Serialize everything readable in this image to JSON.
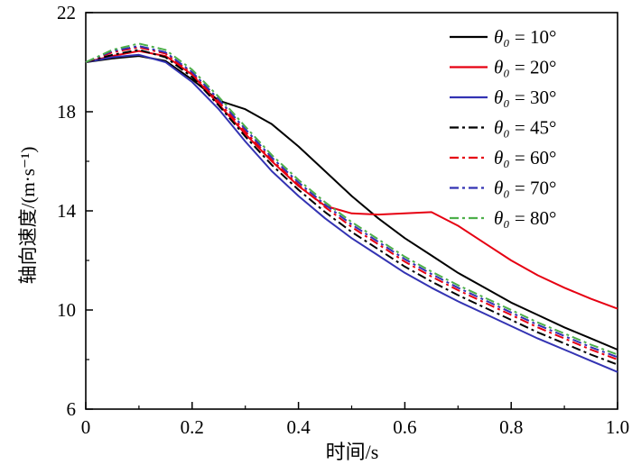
{
  "figure": {
    "background": "#ffffff",
    "frame_color": "#000000"
  },
  "chart_data": {
    "type": "line",
    "title": "",
    "xlabel": "时间/s",
    "ylabel": "轴向速度/(m·s⁻¹)",
    "xlim": [
      0,
      1.0
    ],
    "ylim": [
      6,
      22
    ],
    "grid": false,
    "legend_position": "top-right-inside",
    "x_ticks": {
      "values": [
        0,
        0.2,
        0.4,
        0.6,
        0.8,
        1.0
      ],
      "labels": [
        "0",
        "0.2",
        "0.4",
        "0.6",
        "0.8",
        "1.0"
      ],
      "minor_step": 0.1
    },
    "y_ticks": {
      "values": [
        6,
        10,
        14,
        18,
        22
      ],
      "labels": [
        "6",
        "10",
        "14",
        "18",
        "22"
      ],
      "minor_step": 2
    },
    "x": [
      0,
      0.05,
      0.1,
      0.15,
      0.2,
      0.25,
      0.3,
      0.35,
      0.4,
      0.45,
      0.5,
      0.55,
      0.6,
      0.65,
      0.7,
      0.75,
      0.8,
      0.85,
      0.9,
      0.95,
      1.0
    ],
    "series": [
      {
        "name": "theta0-10",
        "label_symbol": "θ₀",
        "label_rest": " = 10°",
        "color": "#000000",
        "style": "solid",
        "values": [
          20.0,
          20.15,
          20.25,
          20.05,
          19.3,
          18.45,
          18.1,
          17.5,
          16.6,
          15.6,
          14.6,
          13.7,
          12.9,
          12.2,
          11.5,
          10.9,
          10.3,
          9.8,
          9.3,
          8.85,
          8.4
        ]
      },
      {
        "name": "theta0-20",
        "label_symbol": "θ₀",
        "label_rest": " = 20°",
        "color": "#e60012",
        "style": "solid",
        "values": [
          20.0,
          20.25,
          20.45,
          20.25,
          19.5,
          18.3,
          17.1,
          16.0,
          15.0,
          14.2,
          13.9,
          13.85,
          13.9,
          13.95,
          13.4,
          12.7,
          12.0,
          11.4,
          10.9,
          10.45,
          10.05
        ]
      },
      {
        "name": "theta0-30",
        "label_symbol": "θ₀",
        "label_rest": " = 30°",
        "color": "#3333b3",
        "style": "solid",
        "values": [
          20.0,
          20.2,
          20.3,
          20.0,
          19.2,
          18.1,
          16.8,
          15.6,
          14.6,
          13.7,
          12.9,
          12.2,
          11.5,
          10.9,
          10.35,
          9.85,
          9.35,
          8.85,
          8.4,
          7.95,
          7.5
        ]
      },
      {
        "name": "theta0-45",
        "label_symbol": "θ₀",
        "label_rest": " = 45°",
        "color": "#000000",
        "style": "dashdot",
        "values": [
          20.0,
          20.3,
          20.5,
          20.2,
          19.4,
          18.25,
          17.0,
          15.85,
          14.85,
          13.95,
          13.15,
          12.45,
          11.75,
          11.15,
          10.6,
          10.1,
          9.6,
          9.1,
          8.65,
          8.2,
          7.8
        ]
      },
      {
        "name": "theta0-60",
        "label_symbol": "θ₀",
        "label_rest": " = 60°",
        "color": "#e60012",
        "style": "dashdot",
        "values": [
          20.0,
          20.4,
          20.6,
          20.35,
          19.55,
          18.4,
          17.2,
          16.05,
          15.05,
          14.15,
          13.35,
          12.65,
          11.95,
          11.35,
          10.8,
          10.3,
          9.8,
          9.3,
          8.85,
          8.4,
          8.0
        ]
      },
      {
        "name": "theta0-70",
        "label_symbol": "θ₀",
        "label_rest": " = 70°",
        "color": "#3333b3",
        "style": "dashdot",
        "values": [
          20.0,
          20.45,
          20.65,
          20.4,
          19.6,
          18.5,
          17.3,
          16.15,
          15.15,
          14.25,
          13.45,
          12.75,
          12.05,
          11.45,
          10.9,
          10.4,
          9.9,
          9.4,
          8.95,
          8.5,
          8.1
        ]
      },
      {
        "name": "theta0-80",
        "label_symbol": "θ₀",
        "label_rest": " = 80°",
        "color": "#4daf4a",
        "style": "dashdot",
        "values": [
          20.0,
          20.5,
          20.75,
          20.5,
          19.7,
          18.6,
          17.4,
          16.25,
          15.25,
          14.35,
          13.55,
          12.85,
          12.15,
          11.55,
          11.0,
          10.5,
          10.0,
          9.5,
          9.05,
          8.6,
          8.2
        ]
      }
    ]
  }
}
